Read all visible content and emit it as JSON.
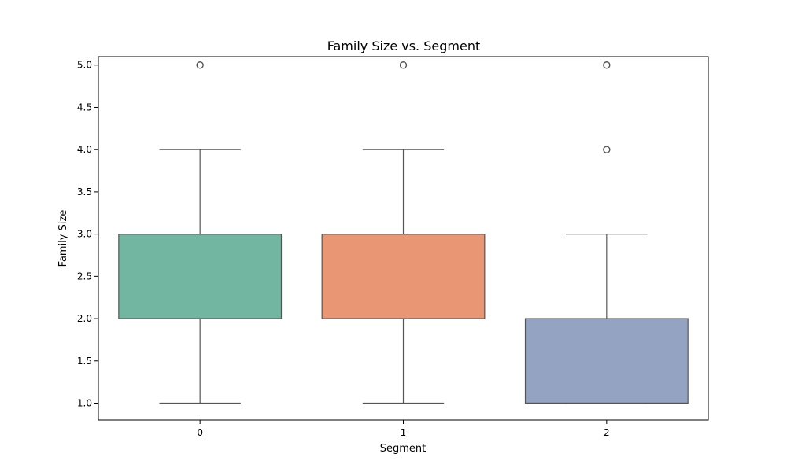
{
  "chart_data": {
    "type": "box",
    "title": "Family Size vs. Segment",
    "xlabel": "Segment",
    "ylabel": "Family Size",
    "categories": [
      "0",
      "1",
      "2"
    ],
    "ylim": [
      0.8,
      5.1
    ],
    "yticks": [
      "1.0",
      "1.5",
      "2.0",
      "2.5",
      "3.0",
      "3.5",
      "4.0",
      "4.5",
      "5.0"
    ],
    "grid": false,
    "boxes": [
      {
        "category": "0",
        "whisker_low": 1.0,
        "q1": 2.0,
        "median": 3.0,
        "q3": 3.0,
        "whisker_high": 4.0,
        "outliers": [
          5.0
        ],
        "color": "#72b6a1"
      },
      {
        "category": "1",
        "whisker_low": 1.0,
        "q1": 2.0,
        "median": 3.0,
        "q3": 3.0,
        "whisker_high": 4.0,
        "outliers": [
          5.0
        ],
        "color": "#e99675"
      },
      {
        "category": "2",
        "whisker_low": 1.0,
        "q1": 1.0,
        "median": 1.0,
        "q3": 2.0,
        "whisker_high": 3.0,
        "outliers": [
          4.0,
          5.0
        ],
        "color": "#95a3c3"
      }
    ],
    "line_color": "#555555"
  }
}
